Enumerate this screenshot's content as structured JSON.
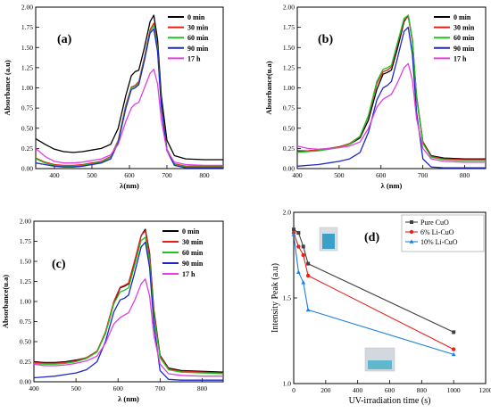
{
  "chart_data": [
    {
      "type": "line",
      "panel": "(a)",
      "xlabel": "λ(nm)",
      "ylabel": "Absorbance (a.u)",
      "xlim": [
        350,
        850
      ],
      "ylim": [
        0,
        2.0
      ],
      "xticks": [
        "400",
        "500",
        "600",
        "700",
        "800"
      ],
      "yticks": [
        "0.00",
        "0.25",
        "0.50",
        "0.75",
        "1.00",
        "1.25",
        "1.50",
        "1.75",
        "2.00"
      ],
      "legend_position": "top-right",
      "series": [
        {
          "name": "0 min",
          "color": "#000000",
          "x": [
            350,
            375,
            400,
            425,
            450,
            475,
            500,
            525,
            550,
            570,
            590,
            605,
            615,
            625,
            640,
            655,
            665,
            675,
            685,
            700,
            720,
            750,
            800,
            850
          ],
          "y": [
            0.37,
            0.3,
            0.24,
            0.21,
            0.2,
            0.21,
            0.23,
            0.25,
            0.3,
            0.5,
            0.9,
            1.15,
            1.2,
            1.22,
            1.5,
            1.82,
            1.9,
            1.6,
            0.9,
            0.35,
            0.16,
            0.12,
            0.11,
            0.11
          ]
        },
        {
          "name": "30 min",
          "color": "#e8201c",
          "x": [
            350,
            375,
            400,
            425,
            450,
            475,
            500,
            525,
            550,
            570,
            590,
            605,
            615,
            625,
            640,
            655,
            665,
            675,
            685,
            700,
            720,
            750,
            800,
            850
          ],
          "y": [
            0.13,
            0.08,
            0.05,
            0.04,
            0.04,
            0.05,
            0.07,
            0.09,
            0.15,
            0.35,
            0.78,
            1.01,
            1.03,
            1.08,
            1.38,
            1.72,
            1.8,
            1.5,
            0.8,
            0.24,
            0.06,
            0.03,
            0.03,
            0.03
          ]
        },
        {
          "name": "60 min",
          "color": "#22c022",
          "x": [
            350,
            375,
            400,
            425,
            450,
            475,
            500,
            525,
            550,
            570,
            590,
            605,
            615,
            625,
            640,
            655,
            665,
            675,
            685,
            700,
            720,
            750,
            800,
            850
          ],
          "y": [
            0.12,
            0.07,
            0.04,
            0.03,
            0.03,
            0.04,
            0.06,
            0.08,
            0.14,
            0.34,
            0.76,
            1.0,
            1.02,
            1.06,
            1.36,
            1.7,
            1.77,
            1.48,
            0.78,
            0.23,
            0.05,
            0.02,
            0.02,
            0.02
          ]
        },
        {
          "name": "90 min",
          "color": "#1f27c8",
          "x": [
            350,
            375,
            400,
            425,
            450,
            475,
            500,
            525,
            550,
            570,
            590,
            605,
            615,
            625,
            640,
            655,
            665,
            675,
            685,
            700,
            720,
            750,
            800,
            850
          ],
          "y": [
            0.07,
            0.05,
            0.03,
            0.02,
            0.02,
            0.03,
            0.05,
            0.07,
            0.12,
            0.32,
            0.74,
            0.98,
            1.0,
            1.04,
            1.34,
            1.68,
            1.73,
            1.45,
            0.76,
            0.22,
            0.04,
            0.01,
            0.01,
            0.01
          ]
        },
        {
          "name": "17 h",
          "color": "#e040e0",
          "x": [
            350,
            375,
            400,
            425,
            450,
            475,
            500,
            525,
            550,
            570,
            590,
            605,
            615,
            625,
            640,
            655,
            665,
            675,
            685,
            700,
            720,
            750,
            800,
            850
          ],
          "y": [
            0.25,
            0.15,
            0.09,
            0.07,
            0.07,
            0.08,
            0.1,
            0.12,
            0.17,
            0.3,
            0.58,
            0.75,
            0.8,
            0.82,
            1.0,
            1.18,
            1.23,
            1.05,
            0.6,
            0.22,
            0.08,
            0.05,
            0.04,
            0.04
          ]
        }
      ]
    },
    {
      "type": "line",
      "panel": "(b)",
      "xlabel": "λ (nm)",
      "ylabel": "Absorbance(u.a)",
      "xlim": [
        400,
        850
      ],
      "ylim": [
        0,
        2.0
      ],
      "xticks": [
        "400",
        "500",
        "600",
        "700",
        "800"
      ],
      "yticks": [
        "0.00",
        "0.25",
        "0.50",
        "0.75",
        "1.00",
        "1.25",
        "1.50",
        "1.75",
        "2.00"
      ],
      "legend_position": "top-right",
      "series": [
        {
          "name": "0 min",
          "color": "#000000",
          "x": [
            400,
            425,
            450,
            475,
            500,
            525,
            550,
            570,
            590,
            605,
            615,
            625,
            640,
            655,
            665,
            675,
            685,
            700,
            720,
            750,
            800,
            850
          ],
          "y": [
            0.22,
            0.22,
            0.23,
            0.25,
            0.27,
            0.3,
            0.38,
            0.6,
            0.98,
            1.17,
            1.19,
            1.22,
            1.5,
            1.82,
            1.9,
            1.6,
            0.9,
            0.33,
            0.16,
            0.13,
            0.12,
            0.12
          ]
        },
        {
          "name": "30 min",
          "color": "#e8201c",
          "x": [
            400,
            425,
            450,
            475,
            500,
            525,
            550,
            570,
            590,
            605,
            615,
            625,
            640,
            655,
            665,
            675,
            685,
            700,
            720,
            750,
            800,
            850
          ],
          "y": [
            0.21,
            0.22,
            0.23,
            0.25,
            0.27,
            0.31,
            0.4,
            0.65,
            1.05,
            1.2,
            1.22,
            1.26,
            1.55,
            1.84,
            1.88,
            1.58,
            0.88,
            0.32,
            0.15,
            0.12,
            0.11,
            0.11
          ]
        },
        {
          "name": "60 min",
          "color": "#22c022",
          "x": [
            400,
            425,
            450,
            475,
            500,
            525,
            550,
            570,
            590,
            605,
            615,
            625,
            640,
            655,
            665,
            675,
            685,
            700,
            720,
            750,
            800,
            850
          ],
          "y": [
            0.2,
            0.21,
            0.22,
            0.24,
            0.26,
            0.3,
            0.4,
            0.66,
            1.08,
            1.23,
            1.25,
            1.28,
            1.57,
            1.86,
            1.9,
            1.6,
            0.89,
            0.31,
            0.14,
            0.11,
            0.1,
            0.1
          ]
        },
        {
          "name": "90 min",
          "color": "#1f27c8",
          "x": [
            400,
            425,
            450,
            475,
            500,
            525,
            550,
            570,
            590,
            605,
            615,
            625,
            640,
            655,
            665,
            675,
            685,
            700,
            720,
            750,
            800,
            850
          ],
          "y": [
            0.03,
            0.04,
            0.05,
            0.07,
            0.09,
            0.12,
            0.2,
            0.45,
            0.85,
            1.0,
            1.03,
            1.08,
            1.38,
            1.7,
            1.75,
            1.42,
            0.7,
            0.12,
            0.02,
            0.01,
            0.01,
            0.01
          ]
        },
        {
          "name": "17 h",
          "color": "#e040e0",
          "x": [
            400,
            425,
            450,
            475,
            500,
            525,
            550,
            570,
            590,
            605,
            615,
            625,
            640,
            655,
            665,
            675,
            685,
            700,
            720,
            750,
            800,
            850
          ],
          "y": [
            0.28,
            0.25,
            0.24,
            0.25,
            0.26,
            0.28,
            0.33,
            0.5,
            0.76,
            0.86,
            0.89,
            0.92,
            1.07,
            1.25,
            1.3,
            1.1,
            0.62,
            0.25,
            0.12,
            0.09,
            0.08,
            0.08
          ]
        }
      ]
    },
    {
      "type": "line",
      "panel": "(c)",
      "xlabel": "λ (nm)",
      "ylabel": "Absorbance(u.a)",
      "xlim": [
        400,
        850
      ],
      "ylim": [
        0,
        2.0
      ],
      "xticks": [
        "400",
        "500",
        "600",
        "700",
        "800"
      ],
      "yticks": [
        "0.00",
        "0.25",
        "0.50",
        "0.75",
        "1.00",
        "1.25",
        "1.50",
        "1.75",
        "2.00"
      ],
      "legend_position": "top-right",
      "series": [
        {
          "name": "0 min",
          "color": "#000000",
          "x": [
            400,
            425,
            450,
            475,
            500,
            525,
            550,
            570,
            590,
            605,
            615,
            625,
            640,
            655,
            665,
            675,
            685,
            700,
            720,
            750,
            800,
            850
          ],
          "y": [
            0.25,
            0.24,
            0.24,
            0.25,
            0.27,
            0.3,
            0.38,
            0.6,
            0.98,
            1.17,
            1.19,
            1.22,
            1.5,
            1.82,
            1.9,
            1.6,
            0.9,
            0.33,
            0.17,
            0.14,
            0.13,
            0.12
          ]
        },
        {
          "name": "30 min",
          "color": "#e8201c",
          "x": [
            400,
            425,
            450,
            475,
            500,
            525,
            550,
            570,
            590,
            605,
            615,
            625,
            640,
            655,
            665,
            675,
            685,
            700,
            720,
            750,
            800,
            850
          ],
          "y": [
            0.24,
            0.23,
            0.23,
            0.24,
            0.26,
            0.3,
            0.38,
            0.62,
            1.0,
            1.18,
            1.2,
            1.23,
            1.52,
            1.82,
            1.88,
            1.57,
            0.87,
            0.32,
            0.16,
            0.13,
            0.12,
            0.11
          ]
        },
        {
          "name": "60 min",
          "color": "#22c022",
          "x": [
            400,
            425,
            450,
            475,
            500,
            525,
            550,
            570,
            590,
            605,
            615,
            625,
            640,
            655,
            665,
            675,
            685,
            700,
            720,
            750,
            800,
            850
          ],
          "y": [
            0.23,
            0.22,
            0.22,
            0.23,
            0.25,
            0.29,
            0.37,
            0.6,
            0.97,
            1.12,
            1.14,
            1.17,
            1.46,
            1.76,
            1.8,
            1.5,
            0.82,
            0.3,
            0.15,
            0.12,
            0.11,
            0.1
          ]
        },
        {
          "name": "90 min",
          "color": "#1f27c8",
          "x": [
            400,
            425,
            450,
            475,
            500,
            525,
            550,
            570,
            590,
            605,
            615,
            625,
            640,
            655,
            665,
            675,
            685,
            700,
            720,
            750,
            800,
            850
          ],
          "y": [
            0.05,
            0.06,
            0.07,
            0.09,
            0.11,
            0.15,
            0.25,
            0.5,
            0.87,
            1.02,
            1.04,
            1.08,
            1.37,
            1.68,
            1.74,
            1.42,
            0.72,
            0.14,
            0.03,
            0.02,
            0.02,
            0.02
          ]
        },
        {
          "name": "17 h",
          "color": "#e040e0",
          "x": [
            400,
            425,
            450,
            475,
            500,
            525,
            550,
            570,
            590,
            605,
            615,
            625,
            640,
            655,
            665,
            675,
            685,
            700,
            720,
            750,
            800,
            850
          ],
          "y": [
            0.22,
            0.2,
            0.2,
            0.21,
            0.23,
            0.26,
            0.32,
            0.48,
            0.72,
            0.8,
            0.83,
            0.86,
            1.02,
            1.22,
            1.28,
            1.07,
            0.58,
            0.22,
            0.1,
            0.08,
            0.07,
            0.07
          ]
        }
      ]
    },
    {
      "type": "line",
      "panel": "(d)",
      "xlabel": "UV-irradiation time (s)",
      "ylabel": "Intensity Peak (a.u)",
      "xlim": [
        0,
        1200
      ],
      "ylim": [
        1.0,
        2.0
      ],
      "xticks": [
        "0",
        "200",
        "400",
        "600",
        "800",
        "1000",
        "1200"
      ],
      "yticks": [
        "1.0",
        "1.5",
        "2.0"
      ],
      "legend_position": "top-right",
      "series": [
        {
          "name": "Pure CuO",
          "color": "#404040",
          "marker": "square",
          "x": [
            0,
            30,
            60,
            90,
            1000
          ],
          "y": [
            1.9,
            1.88,
            1.8,
            1.7,
            1.3
          ]
        },
        {
          "name": "6% Li-CuO",
          "color": "#e8201c",
          "marker": "circle",
          "x": [
            0,
            30,
            60,
            90,
            1000
          ],
          "y": [
            1.88,
            1.8,
            1.75,
            1.63,
            1.2
          ]
        },
        {
          "name": "10% Li-CuO",
          "color": "#1e7fe0",
          "marker": "triangle",
          "x": [
            0,
            30,
            60,
            90,
            1000
          ],
          "y": [
            1.87,
            1.65,
            1.59,
            1.43,
            1.17
          ]
        }
      ]
    }
  ]
}
